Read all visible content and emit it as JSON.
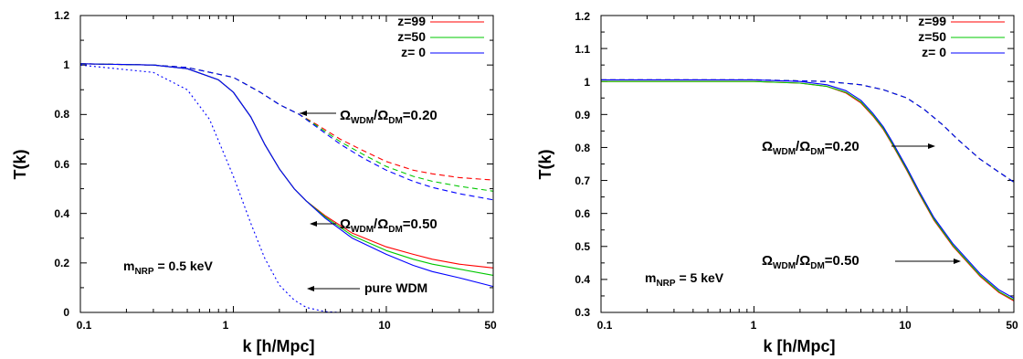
{
  "chart_data": [
    {
      "type": "line",
      "xscale": "log",
      "xlim": [
        0.1,
        50
      ],
      "ylim": [
        0,
        1.2
      ],
      "xlabel": "k [h/Mpc]",
      "ylabel": "T(k)",
      "xticks": [
        0.1,
        1,
        10,
        50
      ],
      "xtick_labels": [
        "0.1",
        "1",
        "10",
        "50"
      ],
      "yticks": [
        0,
        0.2,
        0.4,
        0.6,
        0.8,
        1,
        1.2
      ],
      "ytick_labels": [
        "0",
        "0.2",
        "0.4",
        "0.6",
        "0.8",
        "1",
        "1.2"
      ],
      "legend_position": "top-right",
      "legend": [
        {
          "label": "z=99",
          "color": "#ff0000"
        },
        {
          "label": "z=50",
          "color": "#00c800"
        },
        {
          "label": "z= 0",
          "color": "#0000ff"
        }
      ],
      "annotations": {
        "mass": {
          "prefix": "m",
          "sub": "NRP",
          "suffix": " = 0.5 keV"
        },
        "ratio_020": {
          "om": "Ω",
          "sub1": "WDM",
          "slash": "/",
          "sub2": "DM",
          "value": "=0.20"
        },
        "ratio_050": {
          "om": "Ω",
          "sub1": "WDM",
          "slash": "/",
          "sub2": "DM",
          "value": "=0.50"
        },
        "pure": "pure WDM"
      },
      "series": [
        {
          "group": "0.20",
          "color": "#ff0000",
          "style": "dashed",
          "points": [
            [
              0.1,
              1.005
            ],
            [
              0.3,
              1.0
            ],
            [
              0.5,
              0.99
            ],
            [
              1.0,
              0.95
            ],
            [
              1.5,
              0.89
            ],
            [
              2.0,
              0.84
            ],
            [
              2.7,
              0.8
            ],
            [
              3.5,
              0.76
            ],
            [
              5.0,
              0.7
            ],
            [
              7.0,
              0.655
            ],
            [
              10,
              0.61
            ],
            [
              15,
              0.575
            ],
            [
              20,
              0.56
            ],
            [
              30,
              0.545
            ],
            [
              50,
              0.535
            ]
          ]
        },
        {
          "group": "0.20",
          "color": "#00c800",
          "style": "dashed",
          "points": [
            [
              0.1,
              1.005
            ],
            [
              0.3,
              1.0
            ],
            [
              0.5,
              0.99
            ],
            [
              1.0,
              0.95
            ],
            [
              1.5,
              0.89
            ],
            [
              2.0,
              0.84
            ],
            [
              2.7,
              0.8
            ],
            [
              3.5,
              0.755
            ],
            [
              5.0,
              0.69
            ],
            [
              7.0,
              0.64
            ],
            [
              10,
              0.59
            ],
            [
              15,
              0.55
            ],
            [
              20,
              0.53
            ],
            [
              30,
              0.51
            ],
            [
              50,
              0.49
            ]
          ]
        },
        {
          "group": "0.20",
          "color": "#0000ff",
          "style": "dashed",
          "points": [
            [
              0.1,
              1.005
            ],
            [
              0.3,
              1.0
            ],
            [
              0.5,
              0.99
            ],
            [
              1.0,
              0.95
            ],
            [
              1.5,
              0.89
            ],
            [
              2.0,
              0.84
            ],
            [
              2.7,
              0.8
            ],
            [
              3.5,
              0.75
            ],
            [
              5.0,
              0.68
            ],
            [
              7.0,
              0.625
            ],
            [
              10,
              0.575
            ],
            [
              15,
              0.53
            ],
            [
              20,
              0.505
            ],
            [
              30,
              0.48
            ],
            [
              50,
              0.455
            ]
          ]
        },
        {
          "group": "0.50",
          "color": "#ff0000",
          "style": "solid",
          "points": [
            [
              0.1,
              1.005
            ],
            [
              0.3,
              1.0
            ],
            [
              0.5,
              0.985
            ],
            [
              0.8,
              0.94
            ],
            [
              1.0,
              0.89
            ],
            [
              1.3,
              0.79
            ],
            [
              1.6,
              0.68
            ],
            [
              2.0,
              0.58
            ],
            [
              2.5,
              0.5
            ],
            [
              3.0,
              0.45
            ],
            [
              4.0,
              0.39
            ],
            [
              6.0,
              0.32
            ],
            [
              10,
              0.265
            ],
            [
              15,
              0.235
            ],
            [
              20,
              0.215
            ],
            [
              30,
              0.195
            ],
            [
              50,
              0.18
            ]
          ]
        },
        {
          "group": "0.50",
          "color": "#00c800",
          "style": "solid",
          "points": [
            [
              0.1,
              1.005
            ],
            [
              0.3,
              1.0
            ],
            [
              0.5,
              0.985
            ],
            [
              0.8,
              0.94
            ],
            [
              1.0,
              0.89
            ],
            [
              1.3,
              0.79
            ],
            [
              1.6,
              0.68
            ],
            [
              2.0,
              0.58
            ],
            [
              2.5,
              0.5
            ],
            [
              3.0,
              0.45
            ],
            [
              4.0,
              0.385
            ],
            [
              6.0,
              0.31
            ],
            [
              10,
              0.25
            ],
            [
              15,
              0.215
            ],
            [
              20,
              0.195
            ],
            [
              30,
              0.175
            ],
            [
              50,
              0.15
            ]
          ]
        },
        {
          "group": "0.50",
          "color": "#0000ff",
          "style": "solid",
          "points": [
            [
              0.1,
              1.005
            ],
            [
              0.3,
              1.0
            ],
            [
              0.5,
              0.985
            ],
            [
              0.8,
              0.94
            ],
            [
              1.0,
              0.89
            ],
            [
              1.3,
              0.79
            ],
            [
              1.6,
              0.68
            ],
            [
              2.0,
              0.58
            ],
            [
              2.5,
              0.5
            ],
            [
              3.0,
              0.45
            ],
            [
              4.0,
              0.38
            ],
            [
              6.0,
              0.3
            ],
            [
              10,
              0.235
            ],
            [
              15,
              0.19
            ],
            [
              20,
              0.165
            ],
            [
              30,
              0.14
            ],
            [
              50,
              0.105
            ]
          ]
        },
        {
          "group": "pure",
          "color": "#0000ff",
          "style": "dotted",
          "points": [
            [
              0.1,
              1.0
            ],
            [
              0.3,
              0.97
            ],
            [
              0.5,
              0.9
            ],
            [
              0.7,
              0.78
            ],
            [
              1.0,
              0.55
            ],
            [
              1.3,
              0.36
            ],
            [
              1.6,
              0.22
            ],
            [
              2.0,
              0.11
            ],
            [
              2.5,
              0.05
            ],
            [
              3.0,
              0.02
            ],
            [
              4.0,
              0.003
            ],
            [
              5.0,
              0.0
            ]
          ]
        }
      ]
    },
    {
      "type": "line",
      "xscale": "log",
      "xlim": [
        0.1,
        50
      ],
      "ylim": [
        0.3,
        1.2
      ],
      "xlabel": "k [h/Mpc]",
      "ylabel": "T(k)",
      "xticks": [
        0.1,
        1,
        10,
        50
      ],
      "xtick_labels": [
        "0.1",
        "1",
        "10",
        "50"
      ],
      "yticks": [
        0.3,
        0.4,
        0.5,
        0.6,
        0.7,
        0.8,
        0.9,
        1,
        1.1,
        1.2
      ],
      "ytick_labels": [
        "0.3",
        "0.4",
        "0.5",
        "0.6",
        "0.7",
        "0.8",
        "0.9",
        "1",
        "1.1",
        "1.2"
      ],
      "legend_position": "top-right",
      "legend": [
        {
          "label": "z=99",
          "color": "#ff0000"
        },
        {
          "label": "z=50",
          "color": "#00c800"
        },
        {
          "label": "z= 0",
          "color": "#0000ff"
        }
      ],
      "annotations": {
        "mass": {
          "prefix": "m",
          "sub": "NRP",
          "suffix": " = 5 keV"
        },
        "ratio_020": {
          "om": "Ω",
          "sub1": "WDM",
          "slash": "/",
          "sub2": "DM",
          "value": "=0.20"
        },
        "ratio_050": {
          "om": "Ω",
          "sub1": "WDM",
          "slash": "/",
          "sub2": "DM",
          "value": "=0.50"
        }
      },
      "series": [
        {
          "group": "0.20",
          "color": "#ff0000",
          "style": "dashed",
          "points": [
            [
              0.1,
              1.005
            ],
            [
              1,
              1.005
            ],
            [
              3,
              1.0
            ],
            [
              5,
              0.99
            ],
            [
              7,
              0.975
            ],
            [
              10,
              0.95
            ],
            [
              13,
              0.915
            ],
            [
              17,
              0.87
            ],
            [
              22,
              0.82
            ],
            [
              30,
              0.765
            ],
            [
              40,
              0.725
            ],
            [
              50,
              0.695
            ]
          ]
        },
        {
          "group": "0.20",
          "color": "#00c800",
          "style": "dashed",
          "points": [
            [
              0.1,
              1.005
            ],
            [
              1,
              1.005
            ],
            [
              3,
              1.0
            ],
            [
              5,
              0.99
            ],
            [
              7,
              0.975
            ],
            [
              10,
              0.95
            ],
            [
              13,
              0.915
            ],
            [
              17,
              0.87
            ],
            [
              22,
              0.82
            ],
            [
              30,
              0.765
            ],
            [
              40,
              0.725
            ],
            [
              50,
              0.695
            ]
          ]
        },
        {
          "group": "0.20",
          "color": "#0000ff",
          "style": "dashed",
          "points": [
            [
              0.1,
              1.005
            ],
            [
              1,
              1.005
            ],
            [
              3,
              1.0
            ],
            [
              5,
              0.99
            ],
            [
              7,
              0.975
            ],
            [
              10,
              0.95
            ],
            [
              13,
              0.915
            ],
            [
              17,
              0.87
            ],
            [
              22,
              0.82
            ],
            [
              30,
              0.765
            ],
            [
              40,
              0.725
            ],
            [
              50,
              0.695
            ]
          ]
        },
        {
          "group": "0.50",
          "color": "#ff0000",
          "style": "solid",
          "points": [
            [
              0.1,
              1.0
            ],
            [
              1,
              1.0
            ],
            [
              2,
              0.995
            ],
            [
              3,
              0.985
            ],
            [
              4,
              0.965
            ],
            [
              5,
              0.935
            ],
            [
              6,
              0.895
            ],
            [
              7,
              0.855
            ],
            [
              8,
              0.81
            ],
            [
              10,
              0.73
            ],
            [
              12,
              0.66
            ],
            [
              15,
              0.58
            ],
            [
              20,
              0.5
            ],
            [
              30,
              0.41
            ],
            [
              40,
              0.36
            ],
            [
              50,
              0.335
            ]
          ]
        },
        {
          "group": "0.50",
          "color": "#00c800",
          "style": "solid",
          "points": [
            [
              0.1,
              1.0
            ],
            [
              1,
              1.0
            ],
            [
              2,
              0.995
            ],
            [
              3,
              0.985
            ],
            [
              4,
              0.967
            ],
            [
              5,
              0.938
            ],
            [
              6,
              0.898
            ],
            [
              7,
              0.858
            ],
            [
              8,
              0.813
            ],
            [
              10,
              0.733
            ],
            [
              12,
              0.663
            ],
            [
              15,
              0.583
            ],
            [
              20,
              0.503
            ],
            [
              30,
              0.413
            ],
            [
              40,
              0.363
            ],
            [
              50,
              0.338
            ]
          ]
        },
        {
          "group": "0.50",
          "color": "#0000ff",
          "style": "solid",
          "points": [
            [
              0.1,
              1.005
            ],
            [
              1,
              1.005
            ],
            [
              2,
              1.0
            ],
            [
              3,
              0.99
            ],
            [
              4,
              0.972
            ],
            [
              5,
              0.943
            ],
            [
              6,
              0.903
            ],
            [
              7,
              0.863
            ],
            [
              8,
              0.818
            ],
            [
              10,
              0.738
            ],
            [
              12,
              0.668
            ],
            [
              15,
              0.588
            ],
            [
              20,
              0.508
            ],
            [
              30,
              0.418
            ],
            [
              40,
              0.368
            ],
            [
              50,
              0.343
            ]
          ]
        }
      ]
    }
  ]
}
